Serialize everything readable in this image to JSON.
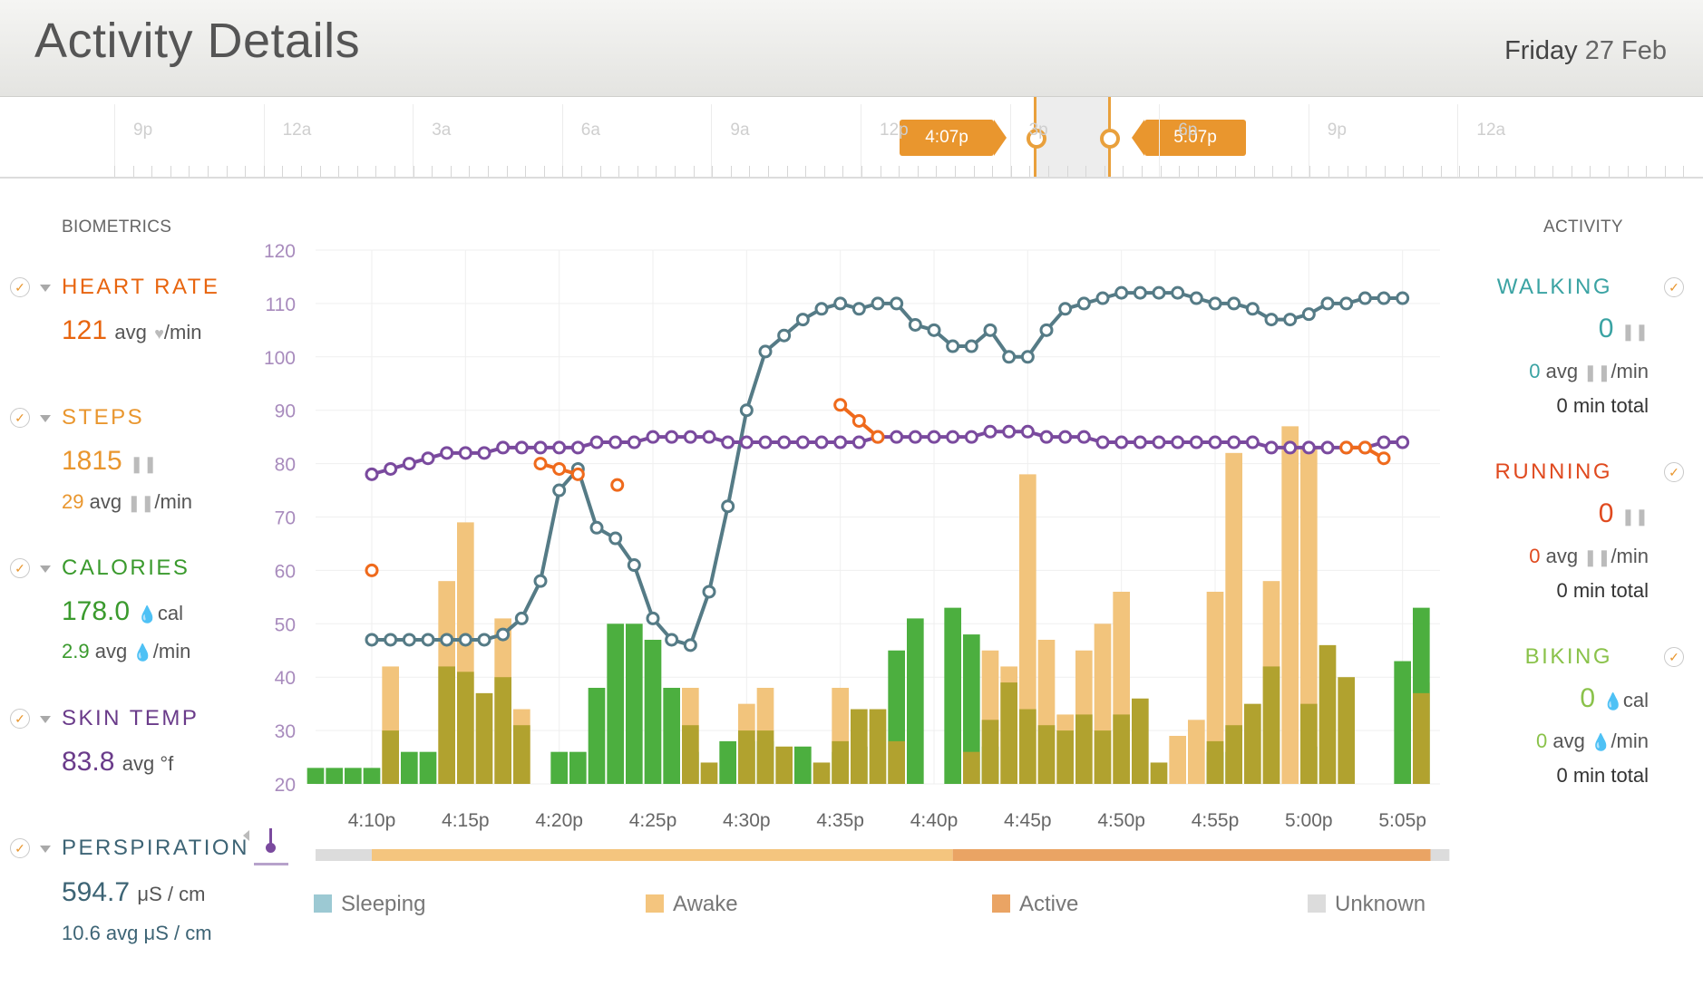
{
  "header": {
    "title": "Activity Details",
    "date_day": "Friday",
    "date_rest": "27 Feb"
  },
  "timeline": {
    "labels": [
      "9p",
      "12a",
      "3a",
      "6a",
      "9a",
      "12p",
      "3p",
      "6p",
      "9p",
      "12a"
    ],
    "start_flag": "4:07p",
    "end_flag": "5:07p"
  },
  "biometrics": {
    "heading": "BIOMETRICS",
    "heart_rate": {
      "title": "HEART RATE",
      "value": "121",
      "unit": "avg",
      "per": "/min",
      "color": "#e8650f"
    },
    "steps": {
      "title": "STEPS",
      "value": "1815",
      "avg": "29",
      "unit": "avg",
      "per": "/min",
      "color": "#e9962e"
    },
    "calories": {
      "title": "CALORIES",
      "value": "178.0",
      "unit": "cal",
      "avg": "2.9",
      "avg_unit": "avg",
      "per": "/min",
      "color": "#3a9a2d"
    },
    "skin_temp": {
      "title": "SKIN TEMP",
      "value": "83.8",
      "unit": "avg °f",
      "color": "#6a3b8a"
    },
    "perspiration": {
      "title": "PERSPIRATION",
      "value": "594.7",
      "unit": "μS / cm",
      "avg_line": "10.6 avg μS / cm",
      "color": "#3d6475"
    }
  },
  "activity": {
    "heading": "ACTIVITY",
    "walking": {
      "title": "WALKING",
      "value": "0",
      "avg": "0",
      "avg_label": "avg",
      "per": "/min",
      "total": "0 min total",
      "color": "#3aa3a3"
    },
    "running": {
      "title": "RUNNING",
      "value": "0",
      "avg": "0",
      "avg_label": "avg",
      "per": "/min",
      "total": "0 min total",
      "color": "#e04a1f"
    },
    "biking": {
      "title": "BIKING",
      "value": "0",
      "unit": "cal",
      "avg": "0",
      "avg_label": "avg",
      "per": "/min",
      "total": "0 min total",
      "color": "#8ac24a"
    }
  },
  "legend": {
    "sleeping": "Sleeping",
    "awake": "Awake",
    "active": "Active",
    "unknown": "Unknown"
  },
  "colors": {
    "awake": "#f4c57e",
    "active": "#eaa464",
    "sleeping": "#9cc9d3",
    "unknown": "#dcdcdc",
    "bar_green": "#4caf3f",
    "bar_olive": "#b1a22f",
    "bar_peach": "#f2c47c",
    "hr_line": "#557b86",
    "temp_line": "#7a4a9e",
    "steps_dot": "#ef6a1c"
  },
  "chart_data": {
    "type": "line",
    "ylim": [
      20,
      120
    ],
    "yticks": [
      120,
      110,
      100,
      90,
      80,
      70,
      60,
      50,
      40,
      30,
      20
    ],
    "xticks": [
      "4:10p",
      "4:15p",
      "4:20p",
      "4:25p",
      "4:30p",
      "4:35p",
      "4:40p",
      "4:45p",
      "4:50p",
      "4:55p",
      "5:00p",
      "5:05p"
    ],
    "x_start_min": 7,
    "x_end_min": 67,
    "series": [
      {
        "kind": "line",
        "color": "#557b86",
        "x": [
          10,
          11,
          12,
          13,
          14,
          15,
          16,
          17,
          18,
          19,
          20,
          21,
          22,
          23,
          24,
          25,
          26,
          27,
          28,
          29,
          30,
          31,
          32,
          33,
          34,
          35,
          36,
          37,
          38,
          39,
          40,
          41,
          42,
          43,
          44,
          45,
          46,
          47,
          48,
          49,
          50,
          51,
          52,
          53,
          54,
          55,
          56,
          57,
          58,
          59,
          60,
          61,
          62,
          63,
          64,
          65
        ],
        "y": [
          47,
          47,
          47,
          47,
          47,
          47,
          47,
          48,
          51,
          58,
          75,
          79,
          68,
          66,
          61,
          51,
          47,
          46,
          56,
          72,
          90,
          101,
          104,
          107,
          109,
          110,
          109,
          110,
          110,
          106,
          105,
          102,
          102,
          105,
          100,
          100,
          105,
          109,
          110,
          111,
          112,
          112,
          112,
          112,
          111,
          110,
          110,
          109,
          107,
          107,
          108,
          110,
          110,
          111,
          111,
          111
        ]
      },
      {
        "kind": "line",
        "color": "#7a4a9e",
        "x": [
          10,
          11,
          12,
          13,
          14,
          15,
          16,
          17,
          18,
          19,
          20,
          21,
          22,
          23,
          24,
          25,
          26,
          27,
          28,
          29,
          30,
          31,
          32,
          33,
          34,
          35,
          36,
          37,
          38,
          39,
          40,
          41,
          42,
          43,
          44,
          45,
          46,
          47,
          48,
          49,
          50,
          51,
          52,
          53,
          54,
          55,
          56,
          57,
          58,
          59,
          60,
          61,
          62,
          63,
          64,
          65
        ],
        "y": [
          78,
          79,
          80,
          81,
          82,
          82,
          82,
          83,
          83,
          83,
          83,
          83,
          84,
          84,
          84,
          85,
          85,
          85,
          85,
          84,
          84,
          84,
          84,
          84,
          84,
          84,
          84,
          85,
          85,
          85,
          85,
          85,
          85,
          86,
          86,
          86,
          85,
          85,
          85,
          84,
          84,
          84,
          84,
          84,
          84,
          84,
          84,
          84,
          83,
          83,
          83,
          83,
          83,
          83,
          84,
          84
        ]
      },
      {
        "kind": "dots",
        "color": "#ef6a1c",
        "segments": [
          {
            "x": [
              10
            ],
            "y": [
              60
            ]
          },
          {
            "x": [
              19,
              20,
              21
            ],
            "y": [
              80,
              79,
              78
            ]
          },
          {
            "x": [
              23.1
            ],
            "y": [
              76
            ]
          },
          {
            "x": [
              35,
              36,
              37
            ],
            "y": [
              91,
              88,
              85
            ]
          },
          {
            "x": [
              62,
              63,
              64
            ],
            "y": [
              83,
              83,
              81
            ]
          }
        ]
      }
    ],
    "bars": {
      "x": [
        7,
        8,
        9,
        10,
        11,
        12,
        13,
        14,
        15,
        16,
        17,
        18,
        19,
        20,
        21,
        22,
        23,
        24,
        25,
        26,
        27,
        28,
        29,
        30,
        31,
        32,
        33,
        34,
        35,
        36,
        37,
        38,
        39,
        40,
        41,
        42,
        43,
        44,
        45,
        46,
        47,
        48,
        49,
        50,
        51,
        52,
        53,
        54,
        55,
        56,
        57,
        58,
        59,
        60,
        61,
        62,
        63,
        64,
        65,
        66
      ],
      "green": [
        23,
        23,
        23,
        23,
        0,
        26,
        26,
        0,
        0,
        0,
        0,
        0,
        0,
        26,
        26,
        38,
        50,
        50,
        47,
        38,
        26,
        0,
        28,
        28,
        28,
        0,
        27,
        0,
        26,
        27,
        0,
        45,
        51,
        0,
        53,
        48,
        27,
        0,
        0,
        0,
        0,
        0,
        0,
        0,
        0,
        0,
        0,
        0,
        26,
        26,
        0,
        0,
        0,
        27,
        0,
        0,
        0,
        0,
        43,
        53
      ],
      "olive": [
        0,
        0,
        0,
        0,
        30,
        0,
        0,
        42,
        41,
        37,
        40,
        31,
        0,
        0,
        0,
        0,
        0,
        0,
        0,
        0,
        31,
        24,
        0,
        30,
        30,
        27,
        0,
        24,
        28,
        34,
        34,
        28,
        0,
        0,
        0,
        26,
        32,
        39,
        34,
        31,
        30,
        33,
        30,
        33,
        36,
        24,
        0,
        0,
        28,
        31,
        35,
        42,
        0,
        35,
        46,
        40,
        0,
        0,
        0,
        37
      ],
      "peach": [
        0,
        0,
        0,
        0,
        42,
        0,
        0,
        58,
        69,
        0,
        51,
        34,
        0,
        0,
        0,
        0,
        0,
        0,
        0,
        0,
        38,
        0,
        0,
        35,
        38,
        0,
        0,
        0,
        38,
        0,
        0,
        0,
        0,
        0,
        0,
        0,
        45,
        42,
        78,
        47,
        33,
        45,
        50,
        56,
        0,
        0,
        29,
        32,
        56,
        82,
        0,
        58,
        87,
        83,
        0,
        0,
        0,
        0,
        0,
        39
      ]
    },
    "state_bar": [
      {
        "state": "Unknown",
        "from": 7,
        "to": 10
      },
      {
        "state": "Awake",
        "from": 10,
        "to": 41
      },
      {
        "state": "Active",
        "from": 41,
        "to": 66.5
      },
      {
        "state": "Unknown",
        "from": 66.5,
        "to": 67.5
      }
    ]
  }
}
